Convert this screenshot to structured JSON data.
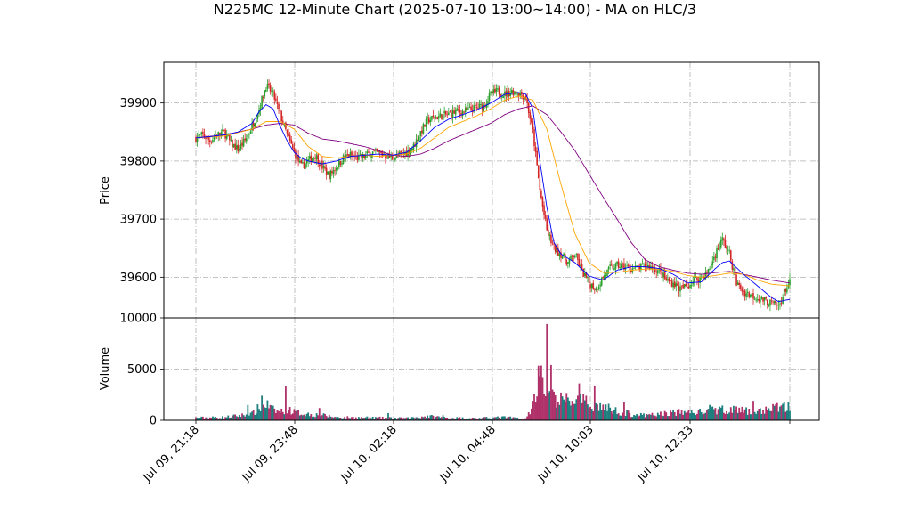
{
  "chart_data": {
    "type": "candlestick",
    "title": "N225MC 12-Minute Chart (2025-07-10 13:00~14:00) - MA on HLC/3",
    "price_panel": {
      "ylabel": "Price",
      "ylim": [
        39530,
        39970
      ],
      "yticks": [
        39600,
        39700,
        39800,
        39900
      ],
      "grid": true
    },
    "volume_panel": {
      "ylabel": "Volume",
      "ylim": [
        0,
        10000
      ],
      "yticks": [
        0,
        5000,
        10000
      ],
      "grid": true
    },
    "x_ticks": [
      "Jul 09, 21:18",
      "Jul 09, 23:48",
      "Jul 10, 02:18",
      "Jul 10, 04:48",
      "Jul 10, 10:03",
      "Jul 10, 12:33"
    ],
    "colors": {
      "up": "#2ca02c",
      "down": "#d62728",
      "ma_short": "#0000ff",
      "ma_mid": "#ffa500",
      "ma_long": "#800080",
      "vol_up": "#1f7f7f",
      "vol_down": "#b0306a",
      "grid": "#b0b0b0"
    },
    "price_path": [
      [
        0,
        39840
      ],
      [
        5,
        39845
      ],
      [
        10,
        39835
      ],
      [
        15,
        39845
      ],
      [
        20,
        39850
      ],
      [
        25,
        39830
      ],
      [
        30,
        39820
      ],
      [
        35,
        39835
      ],
      [
        40,
        39860
      ],
      [
        45,
        39890
      ],
      [
        50,
        39930
      ],
      [
        55,
        39915
      ],
      [
        60,
        39880
      ],
      [
        65,
        39845
      ],
      [
        70,
        39815
      ],
      [
        75,
        39790
      ],
      [
        80,
        39800
      ],
      [
        85,
        39810
      ],
      [
        90,
        39790
      ],
      [
        95,
        39775
      ],
      [
        100,
        39790
      ],
      [
        105,
        39805
      ],
      [
        110,
        39810
      ],
      [
        115,
        39805
      ],
      [
        120,
        39808
      ],
      [
        125,
        39815
      ],
      [
        130,
        39813
      ],
      [
        135,
        39810
      ],
      [
        140,
        39805
      ],
      [
        145,
        39810
      ],
      [
        150,
        39815
      ],
      [
        155,
        39825
      ],
      [
        160,
        39850
      ],
      [
        165,
        39870
      ],
      [
        170,
        39875
      ],
      [
        175,
        39878
      ],
      [
        180,
        39880
      ],
      [
        185,
        39885
      ],
      [
        190,
        39885
      ],
      [
        195,
        39888
      ],
      [
        200,
        39892
      ],
      [
        205,
        39895
      ],
      [
        210,
        39915
      ],
      [
        215,
        39920
      ],
      [
        220,
        39915
      ],
      [
        225,
        39920
      ],
      [
        230,
        39918
      ],
      [
        235,
        39910
      ],
      [
        240,
        39850
      ],
      [
        245,
        39750
      ],
      [
        250,
        39680
      ],
      [
        255,
        39650
      ],
      [
        260,
        39640
      ],
      [
        265,
        39625
      ],
      [
        270,
        39640
      ],
      [
        275,
        39610
      ],
      [
        280,
        39590
      ],
      [
        285,
        39580
      ],
      [
        290,
        39600
      ],
      [
        295,
        39615
      ],
      [
        300,
        39620
      ],
      [
        305,
        39618
      ],
      [
        310,
        39615
      ],
      [
        315,
        39615
      ],
      [
        320,
        39620
      ],
      [
        325,
        39617
      ],
      [
        330,
        39610
      ],
      [
        335,
        39595
      ],
      [
        340,
        39590
      ],
      [
        345,
        39580
      ],
      [
        350,
        39585
      ],
      [
        355,
        39595
      ],
      [
        360,
        39600
      ],
      [
        365,
        39610
      ],
      [
        370,
        39640
      ],
      [
        375,
        39665
      ],
      [
        380,
        39640
      ],
      [
        385,
        39590
      ],
      [
        390,
        39575
      ],
      [
        395,
        39570
      ],
      [
        400,
        39565
      ],
      [
        405,
        39560
      ],
      [
        410,
        39555
      ],
      [
        415,
        39550
      ],
      [
        420,
        39580
      ],
      [
        423,
        39590
      ]
    ],
    "volume_path": [
      [
        0,
        250
      ],
      [
        20,
        300
      ],
      [
        40,
        600
      ],
      [
        45,
        1200
      ],
      [
        50,
        1600
      ],
      [
        55,
        1000
      ],
      [
        60,
        800
      ],
      [
        65,
        1200
      ],
      [
        70,
        800
      ],
      [
        80,
        600
      ],
      [
        90,
        500
      ],
      [
        100,
        300
      ],
      [
        130,
        250
      ],
      [
        150,
        200
      ],
      [
        165,
        400
      ],
      [
        180,
        250
      ],
      [
        200,
        200
      ],
      [
        220,
        300
      ],
      [
        235,
        150
      ],
      [
        240,
        1500
      ],
      [
        243,
        3500
      ],
      [
        246,
        5000
      ],
      [
        250,
        2600
      ],
      [
        255,
        2100
      ],
      [
        262,
        1900
      ],
      [
        270,
        2000
      ],
      [
        280,
        1600
      ],
      [
        290,
        1300
      ],
      [
        300,
        900
      ],
      [
        310,
        600
      ],
      [
        320,
        450
      ],
      [
        330,
        600
      ],
      [
        340,
        750
      ],
      [
        350,
        800
      ],
      [
        360,
        800
      ],
      [
        370,
        1000
      ],
      [
        380,
        1100
      ],
      [
        390,
        900
      ],
      [
        400,
        800
      ],
      [
        410,
        1200
      ],
      [
        423,
        1300
      ]
    ],
    "volume_spikes": [
      [
        37,
        1500
      ],
      [
        47,
        2400
      ],
      [
        64,
        3300
      ],
      [
        88,
        1200
      ],
      [
        137,
        700
      ],
      [
        176,
        500
      ],
      [
        245,
        4300
      ],
      [
        250,
        9400
      ],
      [
        253,
        5400
      ],
      [
        273,
        3600
      ],
      [
        284,
        3400
      ],
      [
        305,
        1800
      ],
      [
        366,
        1500
      ],
      [
        397,
        1900
      ],
      [
        419,
        1800
      ]
    ],
    "ma_short": [
      [
        0,
        39840
      ],
      [
        10,
        39842
      ],
      [
        20,
        39845
      ],
      [
        30,
        39850
      ],
      [
        40,
        39865
      ],
      [
        45,
        39885
      ],
      [
        50,
        39897
      ],
      [
        55,
        39890
      ],
      [
        60,
        39860
      ],
      [
        65,
        39835
      ],
      [
        70,
        39815
      ],
      [
        75,
        39805
      ],
      [
        80,
        39800
      ],
      [
        90,
        39795
      ],
      [
        100,
        39800
      ],
      [
        110,
        39808
      ],
      [
        120,
        39810
      ],
      [
        130,
        39812
      ],
      [
        140,
        39810
      ],
      [
        150,
        39815
      ],
      [
        160,
        39835
      ],
      [
        170,
        39858
      ],
      [
        180,
        39872
      ],
      [
        190,
        39880
      ],
      [
        200,
        39888
      ],
      [
        210,
        39900
      ],
      [
        220,
        39915
      ],
      [
        230,
        39918
      ],
      [
        235,
        39915
      ],
      [
        240,
        39890
      ],
      [
        245,
        39800
      ],
      [
        250,
        39720
      ],
      [
        255,
        39660
      ],
      [
        260,
        39640
      ],
      [
        270,
        39625
      ],
      [
        280,
        39602
      ],
      [
        290,
        39595
      ],
      [
        300,
        39612
      ],
      [
        310,
        39618
      ],
      [
        320,
        39618
      ],
      [
        330,
        39615
      ],
      [
        340,
        39605
      ],
      [
        350,
        39590
      ],
      [
        360,
        39592
      ],
      [
        370,
        39615
      ],
      [
        375,
        39625
      ],
      [
        380,
        39628
      ],
      [
        390,
        39605
      ],
      [
        400,
        39585
      ],
      [
        410,
        39565
      ],
      [
        415,
        39558
      ],
      [
        423,
        39562
      ]
    ],
    "ma_mid": [
      [
        0,
        39840
      ],
      [
        20,
        39843
      ],
      [
        40,
        39855
      ],
      [
        50,
        39868
      ],
      [
        60,
        39868
      ],
      [
        70,
        39855
      ],
      [
        80,
        39825
      ],
      [
        90,
        39808
      ],
      [
        100,
        39805
      ],
      [
        110,
        39808
      ],
      [
        120,
        39810
      ],
      [
        130,
        39808
      ],
      [
        140,
        39810
      ],
      [
        150,
        39812
      ],
      [
        160,
        39822
      ],
      [
        170,
        39840
      ],
      [
        180,
        39858
      ],
      [
        190,
        39868
      ],
      [
        200,
        39878
      ],
      [
        210,
        39890
      ],
      [
        220,
        39905
      ],
      [
        230,
        39912
      ],
      [
        240,
        39905
      ],
      [
        250,
        39855
      ],
      [
        260,
        39760
      ],
      [
        270,
        39675
      ],
      [
        280,
        39625
      ],
      [
        290,
        39608
      ],
      [
        300,
        39608
      ],
      [
        310,
        39612
      ],
      [
        320,
        39614
      ],
      [
        330,
        39614
      ],
      [
        340,
        39610
      ],
      [
        350,
        39603
      ],
      [
        360,
        39600
      ],
      [
        370,
        39603
      ],
      [
        380,
        39607
      ],
      [
        390,
        39605
      ],
      [
        400,
        39595
      ],
      [
        410,
        39588
      ],
      [
        423,
        39585
      ]
    ],
    "ma_long": [
      [
        0,
        39840
      ],
      [
        20,
        39845
      ],
      [
        40,
        39855
      ],
      [
        50,
        39862
      ],
      [
        60,
        39865
      ],
      [
        70,
        39862
      ],
      [
        80,
        39848
      ],
      [
        90,
        39838
      ],
      [
        100,
        39835
      ],
      [
        110,
        39830
      ],
      [
        120,
        39825
      ],
      [
        130,
        39818
      ],
      [
        140,
        39810
      ],
      [
        150,
        39808
      ],
      [
        160,
        39812
      ],
      [
        170,
        39822
      ],
      [
        180,
        39835
      ],
      [
        190,
        39845
      ],
      [
        200,
        39855
      ],
      [
        210,
        39865
      ],
      [
        220,
        39880
      ],
      [
        230,
        39890
      ],
      [
        240,
        39895
      ],
      [
        250,
        39880
      ],
      [
        260,
        39850
      ],
      [
        270,
        39818
      ],
      [
        280,
        39778
      ],
      [
        290,
        39738
      ],
      [
        300,
        39700
      ],
      [
        310,
        39660
      ],
      [
        320,
        39630
      ],
      [
        330,
        39618
      ],
      [
        340,
        39612
      ],
      [
        350,
        39607
      ],
      [
        360,
        39605
      ],
      [
        370,
        39608
      ],
      [
        380,
        39610
      ],
      [
        390,
        39605
      ],
      [
        400,
        39600
      ],
      [
        410,
        39595
      ],
      [
        423,
        39590
      ]
    ]
  }
}
